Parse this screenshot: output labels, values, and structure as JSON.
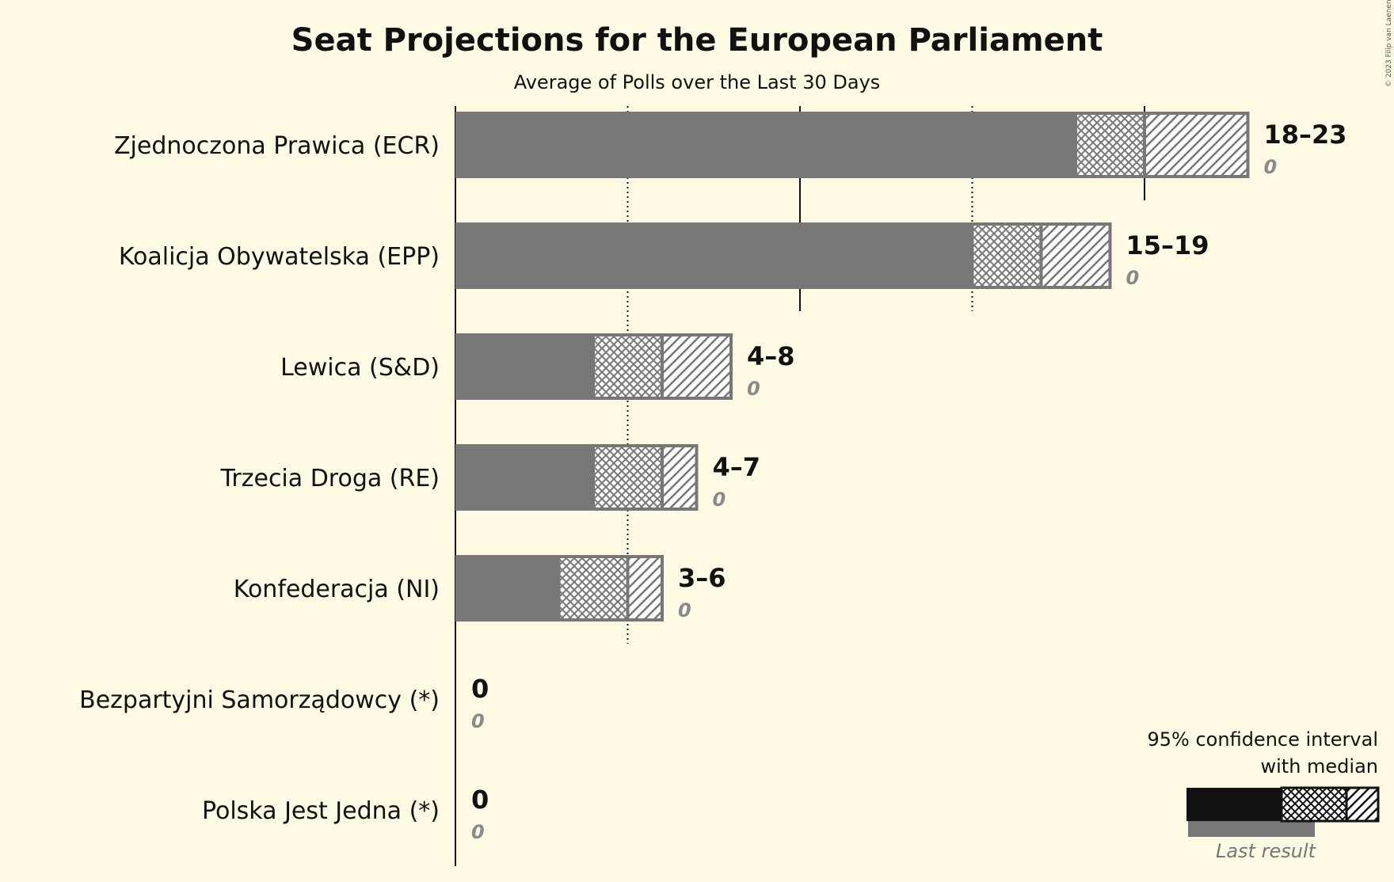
{
  "chart_data": {
    "type": "bar",
    "orientation": "horizontal",
    "title": "Seat Projections for the European Parliament",
    "subtitle": "Average of Polls over the Last 30 Days",
    "copyright": "© 2023 Filip van Laenen",
    "categories": [
      "Zjednoczona Prawica (ECR)",
      "Koalicja Obywatelska (EPP)",
      "Lewica (S&D)",
      "Trzecia Droga (RE)",
      "Konfederacja (NI)",
      "Bezpartyjni Samorządowcy (*)",
      "Polska Jest Jedna (*)"
    ],
    "series": [
      {
        "name": "CI low",
        "values": [
          18,
          15,
          4,
          4,
          3,
          0,
          0
        ]
      },
      {
        "name": "Median",
        "values": [
          20,
          17,
          6,
          6,
          5,
          0,
          0
        ]
      },
      {
        "name": "CI high",
        "values": [
          23,
          19,
          8,
          7,
          6,
          0,
          0
        ]
      },
      {
        "name": "Last result",
        "values": [
          0,
          0,
          0,
          0,
          0,
          0,
          0
        ]
      }
    ],
    "range_labels": [
      "18–23",
      "15–19",
      "4–8",
      "4–7",
      "3–6",
      "0",
      "0"
    ],
    "last_result_labels": [
      "0",
      "0",
      "0",
      "0",
      "0",
      "0",
      "0"
    ],
    "xlim": [
      0,
      23
    ],
    "gridlines_solid": [
      10,
      20
    ],
    "gridlines_dotted": [
      5,
      15
    ],
    "colors": {
      "bar": "#777777",
      "background": "#fffae3",
      "legend_bar": "#111111"
    },
    "legend": {
      "position": "bottom-right",
      "line1": "95% confidence interval",
      "line2": "with median",
      "last_result": "Last result"
    }
  }
}
